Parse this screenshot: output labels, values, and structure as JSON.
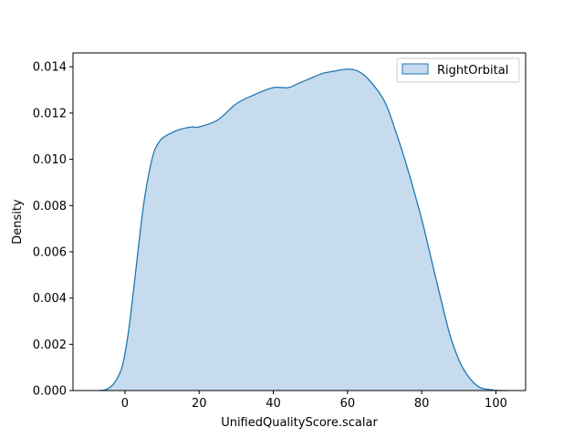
{
  "chart_data": {
    "type": "area",
    "title": "",
    "xlabel": "UnifiedQualityScore.scalar",
    "ylabel": "Density",
    "xlim": [
      -14,
      108
    ],
    "ylim": [
      0,
      0.0146
    ],
    "xticks": [
      0,
      20,
      40,
      60,
      80,
      100
    ],
    "yticks": [
      0.0,
      0.002,
      0.004,
      0.006,
      0.008,
      0.01,
      0.012,
      0.014
    ],
    "xtick_labels": [
      "0",
      "20",
      "40",
      "60",
      "80",
      "100"
    ],
    "ytick_labels": [
      "0.000",
      "0.002",
      "0.004",
      "0.006",
      "0.008",
      "0.010",
      "0.012",
      "0.014"
    ],
    "grid": false,
    "legend_position": "top-right",
    "series": [
      {
        "name": "RightOrbital",
        "line_color": "#1f77b4",
        "fill_color": "#c6dbed",
        "x": [
          -7,
          -5,
          -3,
          -1,
          0,
          1,
          2,
          3,
          4,
          5,
          6,
          7,
          8,
          9,
          10,
          12,
          15,
          18,
          20,
          25,
          30,
          35,
          40,
          44,
          47,
          50,
          53,
          56,
          60,
          63,
          66,
          70,
          73,
          76,
          80,
          83,
          86,
          88,
          91,
          95,
          99,
          101,
          103
        ],
        "y": [
          0.0,
          5e-05,
          0.0003,
          0.0009,
          0.0016,
          0.0026,
          0.0039,
          0.0053,
          0.0067,
          0.008,
          0.009,
          0.0098,
          0.0104,
          0.0107,
          0.0109,
          0.0111,
          0.0113,
          0.0114,
          0.0114,
          0.0117,
          0.0124,
          0.0128,
          0.0131,
          0.0131,
          0.0133,
          0.0135,
          0.0137,
          0.0138,
          0.0139,
          0.0138,
          0.0134,
          0.0125,
          0.0112,
          0.0097,
          0.0074,
          0.0054,
          0.0034,
          0.0022,
          0.001,
          0.0002,
          3e-05,
          0.0,
          0.0
        ]
      }
    ]
  }
}
